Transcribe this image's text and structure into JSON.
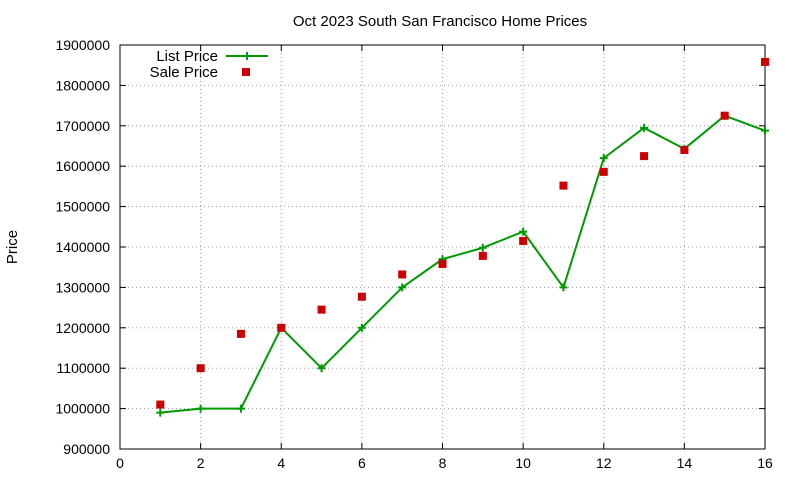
{
  "chart_data": {
    "type": "line",
    "title": "Oct 2023 South San Francisco Home Prices",
    "xlabel": "",
    "ylabel": "Price",
    "xlim": [
      0,
      16
    ],
    "ylim": [
      900000,
      1900000
    ],
    "x_ticks": [
      "0",
      "2",
      "4",
      "6",
      "8",
      "10",
      "12",
      "14",
      "16"
    ],
    "y_ticks": [
      "900000",
      "1000000",
      "1100000",
      "1200000",
      "1300000",
      "1400000",
      "1500000",
      "1600000",
      "1700000",
      "1800000",
      "1900000"
    ],
    "grid": true,
    "legend_position": "top-left",
    "series": [
      {
        "name": "List Price",
        "style": "line-with-plus-markers",
        "color": "#009900",
        "x": [
          1,
          2,
          3,
          4,
          5,
          6,
          7,
          8,
          9,
          10,
          11,
          12,
          13,
          14,
          15,
          16
        ],
        "y": [
          990000,
          1000000,
          1000000,
          1200000,
          1100000,
          1200000,
          1300000,
          1370000,
          1398000,
          1438000,
          1300000,
          1620000,
          1695000,
          1643000,
          1725000,
          1688000
        ]
      },
      {
        "name": "Sale Price",
        "style": "square-markers",
        "color": "#cc0000",
        "x": [
          1,
          2,
          3,
          4,
          5,
          6,
          7,
          8,
          9,
          10,
          11,
          12,
          13,
          14,
          15,
          16
        ],
        "y": [
          1010000,
          1100000,
          1185000,
          1200000,
          1245000,
          1277000,
          1332000,
          1358000,
          1378000,
          1415000,
          1552000,
          1586000,
          1625000,
          1640000,
          1725000,
          1858000
        ]
      }
    ]
  }
}
